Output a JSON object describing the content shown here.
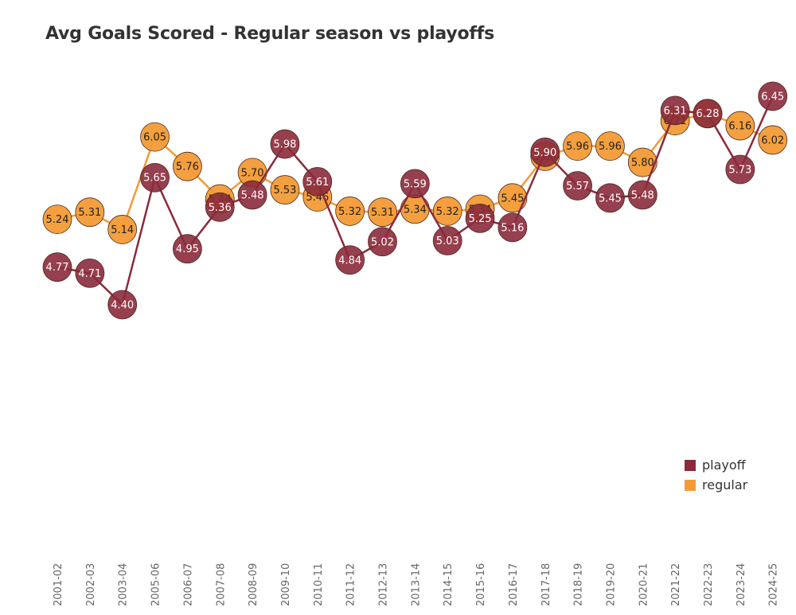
{
  "title": "Avg Goals Scored - Regular season vs playoffs",
  "colors": {
    "playoff": "#8b2a3b",
    "regular": "#f39b36"
  },
  "legend": {
    "placement": "bottom-right",
    "items": [
      {
        "label": "playoff",
        "series": "playoff"
      },
      {
        "label": "regular",
        "series": "regular"
      }
    ]
  },
  "chart_data": {
    "type": "line",
    "title": "Avg Goals Scored - Regular season vs playoffs",
    "xlabel": "",
    "ylabel": "",
    "grid": false,
    "ylim": [
      3.0,
      6.8
    ],
    "categories": [
      "2001-02",
      "2002-03",
      "2003-04",
      "2005-06",
      "2006-07",
      "2007-08",
      "2008-09",
      "2009-10",
      "2010-11",
      "2011-12",
      "2012-13",
      "2013-14",
      "2014-15",
      "2015-16",
      "2016-17",
      "2017-18",
      "2018-19",
      "2019-20",
      "2020-21",
      "2021-22",
      "2022-23",
      "2023-24",
      "2024-25"
    ],
    "series": [
      {
        "name": "playoff",
        "values": [
          4.77,
          4.71,
          4.4,
          5.65,
          4.95,
          5.36,
          5.48,
          5.98,
          5.61,
          4.84,
          5.02,
          5.59,
          5.03,
          5.25,
          5.16,
          5.9,
          5.57,
          5.45,
          5.48,
          6.31,
          6.28,
          5.73,
          6.45
        ]
      },
      {
        "name": "regular",
        "values": [
          5.24,
          5.31,
          5.14,
          6.05,
          5.76,
          5.44,
          5.7,
          5.53,
          5.46,
          5.32,
          5.31,
          5.34,
          5.32,
          5.34,
          5.45,
          5.86,
          5.96,
          5.96,
          5.8,
          6.21,
          6.28,
          6.16,
          6.02
        ]
      }
    ]
  }
}
